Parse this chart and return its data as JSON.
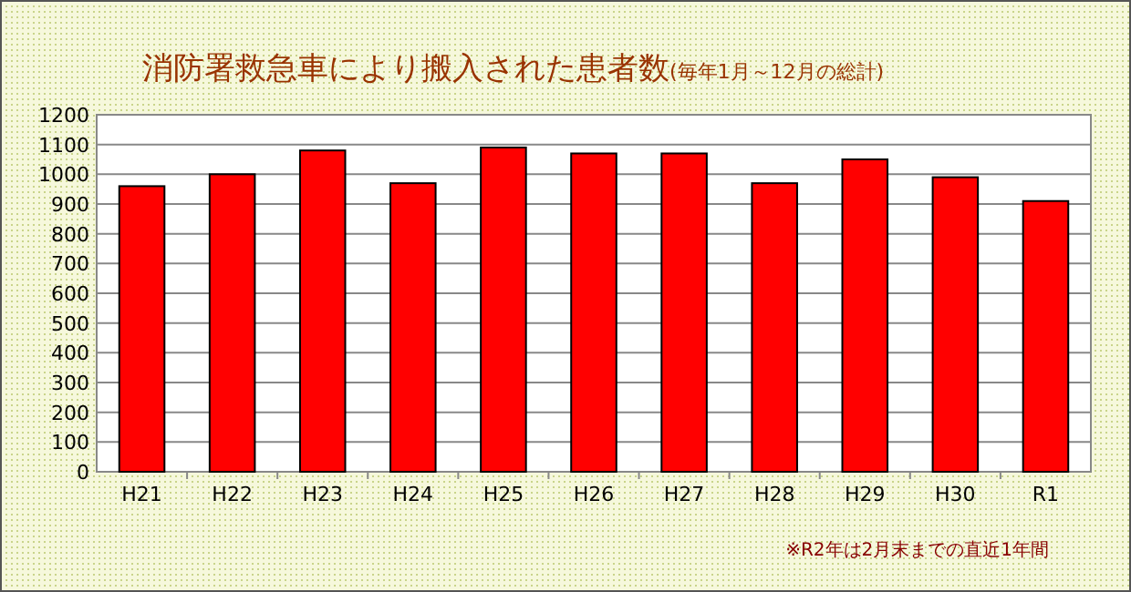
{
  "chart_data": {
    "type": "bar",
    "title": "消防署救急車により搬入された患者数",
    "subtitle": "(毎年1月～12月の総計)",
    "categories": [
      "H21",
      "H22",
      "H23",
      "H24",
      "H25",
      "H26",
      "H27",
      "H28",
      "H29",
      "H30",
      "R1"
    ],
    "values": [
      960,
      1000,
      1080,
      970,
      1090,
      1070,
      1070,
      970,
      1050,
      990,
      910
    ],
    "color": "#ff0000",
    "ylim": [
      0,
      1200
    ],
    "yticks": [
      0,
      100,
      200,
      300,
      400,
      500,
      600,
      700,
      800,
      900,
      1000,
      1100,
      1200
    ],
    "grid": "y",
    "annotations": [
      "※R2年は2月末までの直近1年間"
    ]
  }
}
